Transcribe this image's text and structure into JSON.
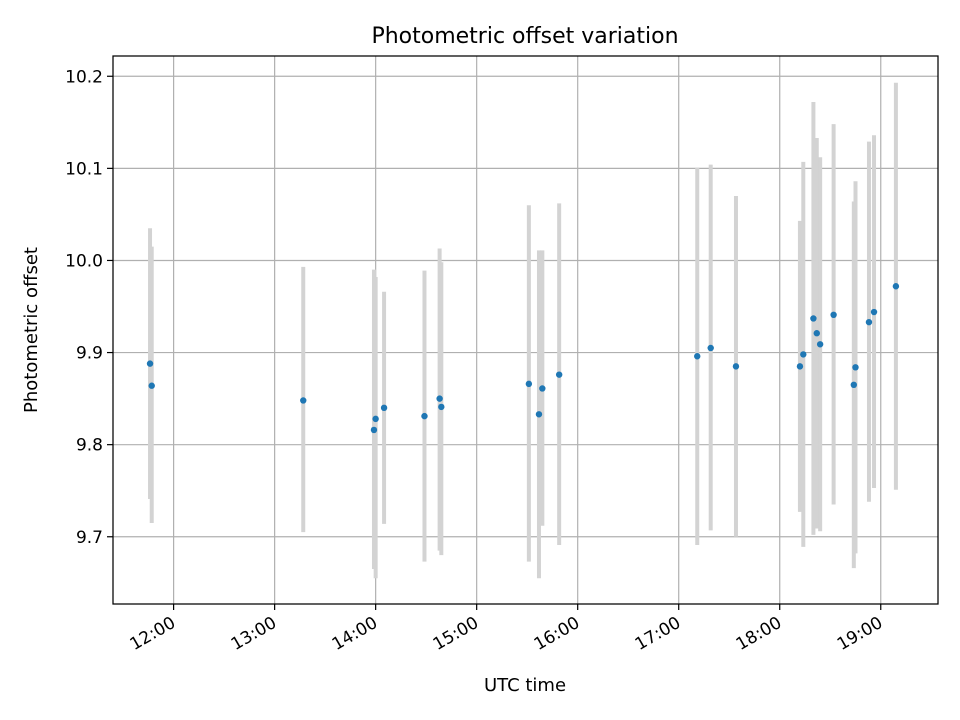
{
  "chart_data": {
    "type": "scatter",
    "title": "Photometric offset variation",
    "xlabel": "UTC time",
    "ylabel": "Photometric offset",
    "xlim": [
      "11:24",
      "19:34"
    ],
    "ylim": [
      9.627,
      10.222
    ],
    "grid": true,
    "x_ticks": [
      "12:00",
      "13:00",
      "14:00",
      "15:00",
      "16:00",
      "17:00",
      "18:00",
      "19:00"
    ],
    "y_ticks": [
      "9.7",
      "9.8",
      "9.9",
      "10.0",
      "10.1",
      "10.2"
    ],
    "colors": {
      "point": "#1f77b4",
      "errorbar": "#d3d3d3",
      "grid": "#b0b0b0"
    },
    "series": [
      {
        "points": [
          {
            "x": "11:46",
            "y": 9.888,
            "err": [
              9.741,
              10.035
            ]
          },
          {
            "x": "11:47",
            "y": 9.864,
            "err": [
              9.715,
              10.015
            ]
          },
          {
            "x": "13:17",
            "y": 9.848,
            "err": [
              9.705,
              9.993
            ]
          },
          {
            "x": "13:59",
            "y": 9.816,
            "err": [
              9.665,
              9.99
            ]
          },
          {
            "x": "14:00",
            "y": 9.828,
            "err": [
              9.655,
              9.982
            ]
          },
          {
            "x": "14:05",
            "y": 9.84,
            "err": [
              9.714,
              9.966
            ]
          },
          {
            "x": "14:29",
            "y": 9.831,
            "err": [
              9.673,
              9.989
            ]
          },
          {
            "x": "14:38",
            "y": 9.85,
            "err": [
              9.685,
              10.013
            ]
          },
          {
            "x": "14:39",
            "y": 9.841,
            "err": [
              9.68,
              9.998
            ]
          },
          {
            "x": "15:31",
            "y": 9.866,
            "err": [
              9.673,
              10.06
            ]
          },
          {
            "x": "15:37",
            "y": 9.833,
            "err": [
              9.655,
              10.011
            ]
          },
          {
            "x": "15:39",
            "y": 9.861,
            "err": [
              9.712,
              10.011
            ]
          },
          {
            "x": "15:49",
            "y": 9.876,
            "err": [
              9.691,
              10.062
            ]
          },
          {
            "x": "17:11",
            "y": 9.896,
            "err": [
              9.691,
              10.101
            ]
          },
          {
            "x": "17:19",
            "y": 9.905,
            "err": [
              9.707,
              10.104
            ]
          },
          {
            "x": "17:34",
            "y": 9.885,
            "err": [
              9.7,
              10.07
            ]
          },
          {
            "x": "18:12",
            "y": 9.885,
            "err": [
              9.727,
              10.043
            ]
          },
          {
            "x": "18:14",
            "y": 9.898,
            "err": [
              9.689,
              10.107
            ]
          },
          {
            "x": "18:20",
            "y": 9.937,
            "err": [
              9.702,
              10.172
            ]
          },
          {
            "x": "18:22",
            "y": 9.921,
            "err": [
              9.709,
              10.133
            ]
          },
          {
            "x": "18:24",
            "y": 9.909,
            "err": [
              9.706,
              10.112
            ]
          },
          {
            "x": "18:32",
            "y": 9.941,
            "err": [
              9.735,
              10.148
            ]
          },
          {
            "x": "18:44",
            "y": 9.865,
            "err": [
              9.666,
              10.064
            ]
          },
          {
            "x": "18:45",
            "y": 9.884,
            "err": [
              9.682,
              10.086
            ]
          },
          {
            "x": "18:53",
            "y": 9.933,
            "err": [
              9.738,
              10.129
            ]
          },
          {
            "x": "18:56",
            "y": 9.944,
            "err": [
              9.753,
              10.136
            ]
          },
          {
            "x": "19:09",
            "y": 9.972,
            "err": [
              9.751,
              10.193
            ]
          }
        ]
      }
    ]
  }
}
